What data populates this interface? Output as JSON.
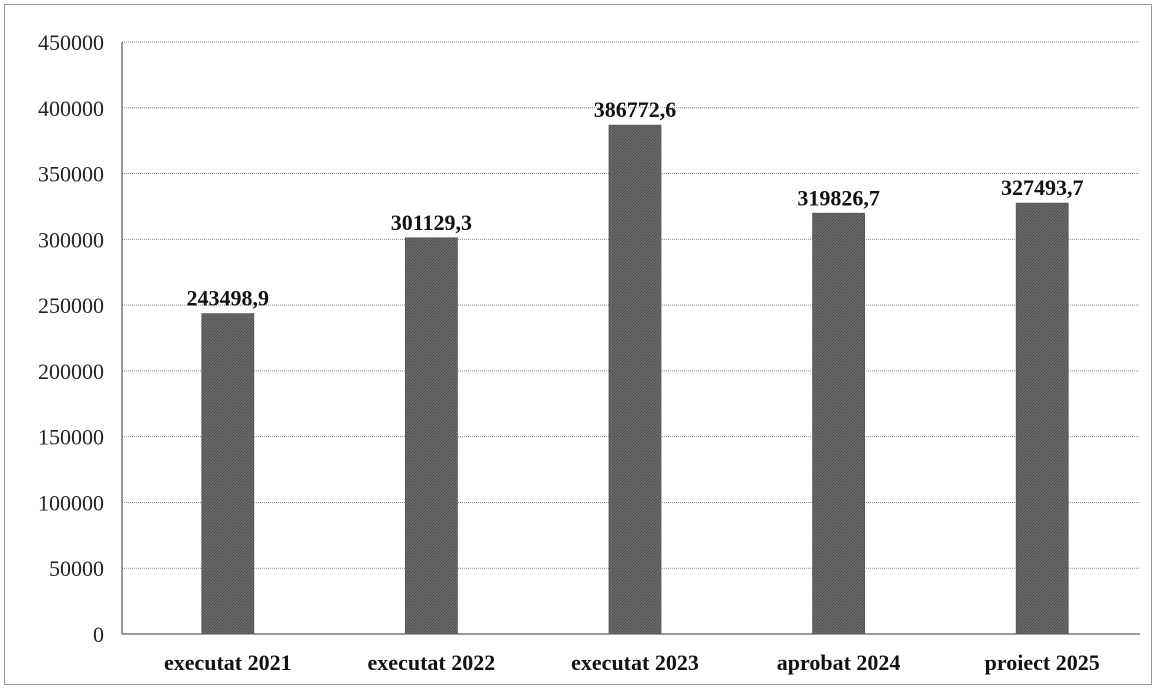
{
  "chart_data": {
    "type": "bar",
    "categories": [
      "executat 2021",
      "executat 2022",
      "executat 2023",
      "aprobat 2024",
      "proiect 2025"
    ],
    "values": [
      243498.9,
      301129.3,
      386772.6,
      319826.7,
      327493.7
    ],
    "data_labels": [
      "243498,9",
      "301129,3",
      "386772,6",
      "319826,7",
      "327493,7"
    ],
    "yticks": [
      0,
      50000,
      100000,
      150000,
      200000,
      250000,
      300000,
      350000,
      400000,
      450000
    ],
    "ylim": [
      0,
      450000
    ],
    "title": "",
    "xlabel": "",
    "ylabel": "",
    "grid": true,
    "legend": "none",
    "bar_color": "#6f6f6f"
  }
}
